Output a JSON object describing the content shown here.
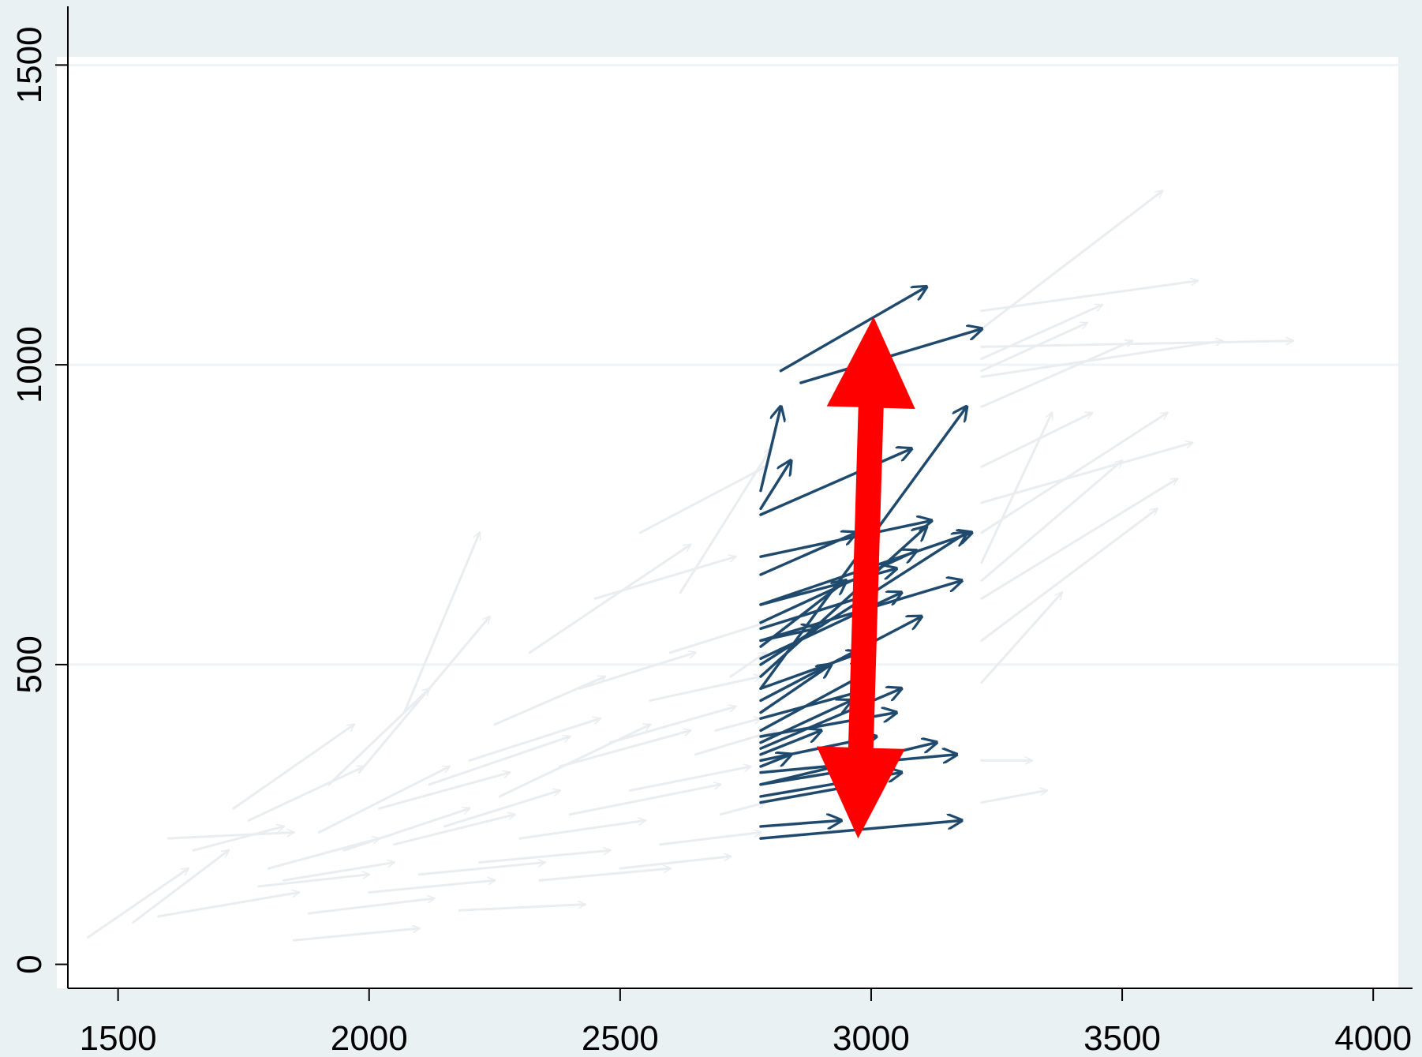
{
  "chart_data": {
    "type": "quiver",
    "title": "",
    "xlabel": "",
    "ylabel": "",
    "xlim": [
      1400,
      4050
    ],
    "ylim": [
      -40,
      1540
    ],
    "x_ticks": [
      1500,
      2000,
      2500,
      3000,
      3500,
      4000
    ],
    "y_ticks": [
      0,
      500,
      1000,
      1500
    ],
    "x_tick_labels": [
      "1500",
      "2000",
      "2500",
      "3000",
      "3500",
      "4000"
    ],
    "y_tick_labels": [
      "0",
      "500",
      "1000",
      "1500"
    ],
    "grid": "horizontal",
    "highlight_band_x": [
      2780,
      3220
    ],
    "colors": {
      "background": "#e9f1f3",
      "plot_area": "#ffffff",
      "faded_arrow": "#eaedf0",
      "highlight_arrow": "#1f4a6d",
      "double_arrow": "#ff0000",
      "axis": "#000000",
      "gridline": "#eef4f6"
    },
    "series": [
      {
        "style": "faded",
        "arrows": [
          [
            1440,
            45,
            1640,
            160
          ],
          [
            1530,
            70,
            1720,
            190
          ],
          [
            1580,
            80,
            1860,
            120
          ],
          [
            1600,
            210,
            1850,
            220
          ],
          [
            1650,
            190,
            1830,
            230
          ],
          [
            1730,
            260,
            1970,
            400
          ],
          [
            1760,
            240,
            1990,
            330
          ],
          [
            1780,
            130,
            2000,
            150
          ],
          [
            1800,
            160,
            2020,
            210
          ],
          [
            1830,
            140,
            2050,
            170
          ],
          [
            1850,
            40,
            2100,
            60
          ],
          [
            1880,
            85,
            2130,
            110
          ],
          [
            1900,
            220,
            2160,
            330
          ],
          [
            1920,
            300,
            2120,
            460
          ],
          [
            1950,
            190,
            2200,
            260
          ],
          [
            1980,
            320,
            2240,
            580
          ],
          [
            2000,
            120,
            2250,
            140
          ],
          [
            2020,
            260,
            2280,
            320
          ],
          [
            2050,
            200,
            2290,
            250
          ],
          [
            2070,
            420,
            2220,
            720
          ],
          [
            2100,
            150,
            2350,
            170
          ],
          [
            2120,
            300,
            2400,
            380
          ],
          [
            2150,
            230,
            2380,
            290
          ],
          [
            2180,
            90,
            2430,
            100
          ],
          [
            2200,
            340,
            2460,
            410
          ],
          [
            2220,
            170,
            2480,
            190
          ],
          [
            2250,
            400,
            2470,
            480
          ],
          [
            2260,
            280,
            2560,
            400
          ],
          [
            2300,
            210,
            2550,
            240
          ],
          [
            2320,
            520,
            2640,
            700
          ],
          [
            2340,
            140,
            2600,
            160
          ],
          [
            2380,
            330,
            2640,
            390
          ],
          [
            2400,
            250,
            2700,
            300
          ],
          [
            2420,
            460,
            2650,
            520
          ],
          [
            2450,
            610,
            2730,
            680
          ],
          [
            2480,
            370,
            2730,
            430
          ],
          [
            2500,
            160,
            2720,
            180
          ],
          [
            2520,
            290,
            2760,
            330
          ],
          [
            2540,
            720,
            2790,
            830
          ],
          [
            2560,
            440,
            2780,
            480
          ],
          [
            2580,
            200,
            2780,
            220
          ],
          [
            2600,
            520,
            2790,
            570
          ],
          [
            2620,
            620,
            2800,
            860
          ],
          [
            2650,
            350,
            2810,
            390
          ],
          [
            2690,
            390,
            2780,
            410
          ],
          [
            2700,
            250,
            2790,
            270
          ],
          [
            2720,
            480,
            2790,
            520
          ],
          [
            3220,
            670,
            3360,
            920
          ],
          [
            3220,
            1060,
            3580,
            1290
          ],
          [
            3220,
            1010,
            3460,
            1100
          ],
          [
            3220,
            1090,
            3650,
            1140
          ],
          [
            3220,
            930,
            3520,
            1040
          ],
          [
            3220,
            990,
            3430,
            1070
          ],
          [
            3220,
            830,
            3440,
            920
          ],
          [
            3220,
            640,
            3500,
            840
          ],
          [
            3220,
            720,
            3590,
            920
          ],
          [
            3220,
            540,
            3570,
            760
          ],
          [
            3220,
            770,
            3640,
            870
          ],
          [
            3220,
            470,
            3380,
            620
          ],
          [
            3220,
            340,
            3320,
            340
          ],
          [
            3220,
            270,
            3350,
            290
          ],
          [
            3220,
            1030,
            3840,
            1040
          ],
          [
            3220,
            610,
            3610,
            810
          ],
          [
            3220,
            980,
            3700,
            1040
          ]
        ]
      },
      {
        "style": "highlight",
        "arrows": [
          [
            2780,
            760,
            2840,
            840
          ],
          [
            2780,
            790,
            2820,
            930
          ],
          [
            2780,
            750,
            3080,
            860
          ],
          [
            2820,
            990,
            3110,
            1130
          ],
          [
            2860,
            970,
            3220,
            1060
          ],
          [
            2780,
            650,
            2970,
            720
          ],
          [
            2780,
            570,
            3090,
            690
          ],
          [
            2780,
            530,
            2950,
            640
          ],
          [
            2780,
            480,
            3110,
            730
          ],
          [
            2780,
            460,
            3190,
            930
          ],
          [
            2780,
            440,
            3100,
            580
          ],
          [
            2780,
            420,
            2920,
            500
          ],
          [
            2780,
            390,
            3000,
            490
          ],
          [
            2780,
            370,
            2960,
            440
          ],
          [
            2780,
            360,
            3060,
            460
          ],
          [
            2780,
            350,
            2900,
            390
          ],
          [
            2780,
            330,
            2840,
            350
          ],
          [
            2780,
            300,
            3130,
            370
          ],
          [
            2780,
            270,
            2980,
            300
          ],
          [
            2780,
            230,
            2940,
            240
          ],
          [
            2780,
            210,
            3180,
            240
          ],
          [
            2780,
            560,
            3010,
            620
          ],
          [
            2780,
            540,
            2890,
            560
          ],
          [
            2780,
            510,
            3060,
            620
          ],
          [
            2780,
            500,
            3190,
            720
          ],
          [
            2780,
            680,
            3120,
            740
          ],
          [
            2780,
            600,
            3050,
            660
          ],
          [
            2780,
            460,
            2980,
            520
          ],
          [
            2780,
            410,
            3000,
            460
          ],
          [
            2780,
            380,
            3050,
            420
          ],
          [
            2780,
            340,
            3010,
            380
          ],
          [
            2780,
            320,
            3170,
            350
          ],
          [
            2780,
            300,
            3000,
            330
          ],
          [
            2780,
            280,
            3060,
            320
          ],
          [
            2780,
            600,
            3200,
            720
          ],
          [
            2780,
            540,
            3180,
            640
          ]
        ]
      },
      {
        "style": "double-arrow",
        "arrows": [
          [
            2974,
            210,
            3005,
            1080
          ]
        ]
      }
    ]
  }
}
